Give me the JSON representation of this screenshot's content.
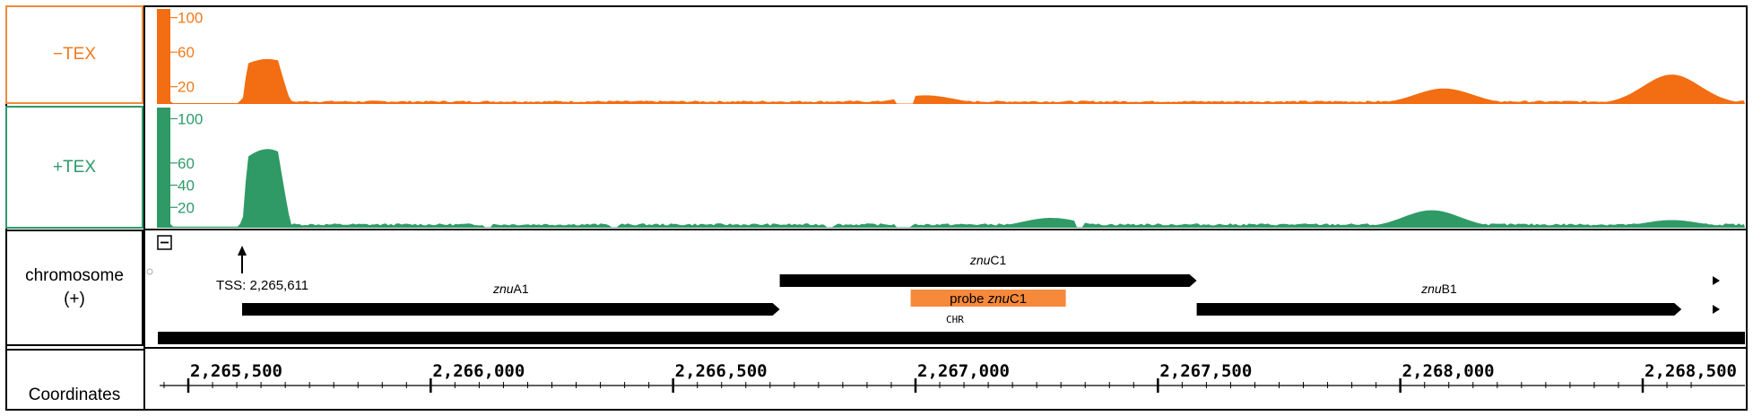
{
  "tracks": {
    "minus_tex": {
      "label": "−TEX",
      "color": "#f36d12",
      "label_color": "#f07a1e",
      "ticks": [
        "100",
        "60",
        "20"
      ],
      "tick_values": [
        100,
        60,
        20
      ]
    },
    "plus_tex": {
      "label": "+TEX",
      "color": "#2f9a66",
      "label_color": "#2e9a6a",
      "ticks": [
        "100",
        "60",
        "40",
        "20"
      ],
      "tick_values": [
        100,
        60,
        40,
        20
      ]
    },
    "chromosome": {
      "label_line1": "chromosome",
      "label_line2": "(+)"
    },
    "coordinates": {
      "label": "Coordinates"
    }
  },
  "annotations": {
    "tss_label": "TSS: 2,265,611",
    "collapse_glyph": "⊟",
    "chr_label": "CHR",
    "probe_prefix": "probe ",
    "probe_gene": "znuC1",
    "probe_color": "#f7893a"
  },
  "genes": [
    {
      "name_italic": "znu",
      "name_rest": "A1",
      "start": 2265611,
      "end": 2266720,
      "strand": "+"
    },
    {
      "name_italic": "znu",
      "name_rest": "C1",
      "start": 2266720,
      "end": 2267580,
      "strand": "+"
    },
    {
      "name_italic": "znu",
      "name_rest": "B1",
      "start": 2267580,
      "end": 2268580,
      "strand": "+"
    }
  ],
  "probe": {
    "start": 2266990,
    "end": 2267310
  },
  "axis": {
    "start": 2265440,
    "end": 2268640,
    "major_ticks": [
      2265500,
      2266000,
      2266500,
      2267000,
      2267500,
      2268000,
      2268500
    ],
    "major_labels": [
      "2,265,500",
      "2,266,000",
      "2,266,500",
      "2,267,000",
      "2,267,500",
      "2,268,000",
      "2,268,500"
    ]
  },
  "coverage": {
    "minus_tex_peaks": [
      {
        "pos": 2265611,
        "height": 52
      },
      {
        "pos": 2268560,
        "height": 34
      },
      {
        "pos": 2268090,
        "height": 18
      },
      {
        "pos": 2267020,
        "height": 10
      }
    ],
    "plus_tex_peaks": [
      {
        "pos": 2265611,
        "height": 72
      },
      {
        "pos": 2268065,
        "height": 16
      },
      {
        "pos": 2267280,
        "height": 9
      },
      {
        "pos": 2268560,
        "height": 7
      }
    ]
  }
}
